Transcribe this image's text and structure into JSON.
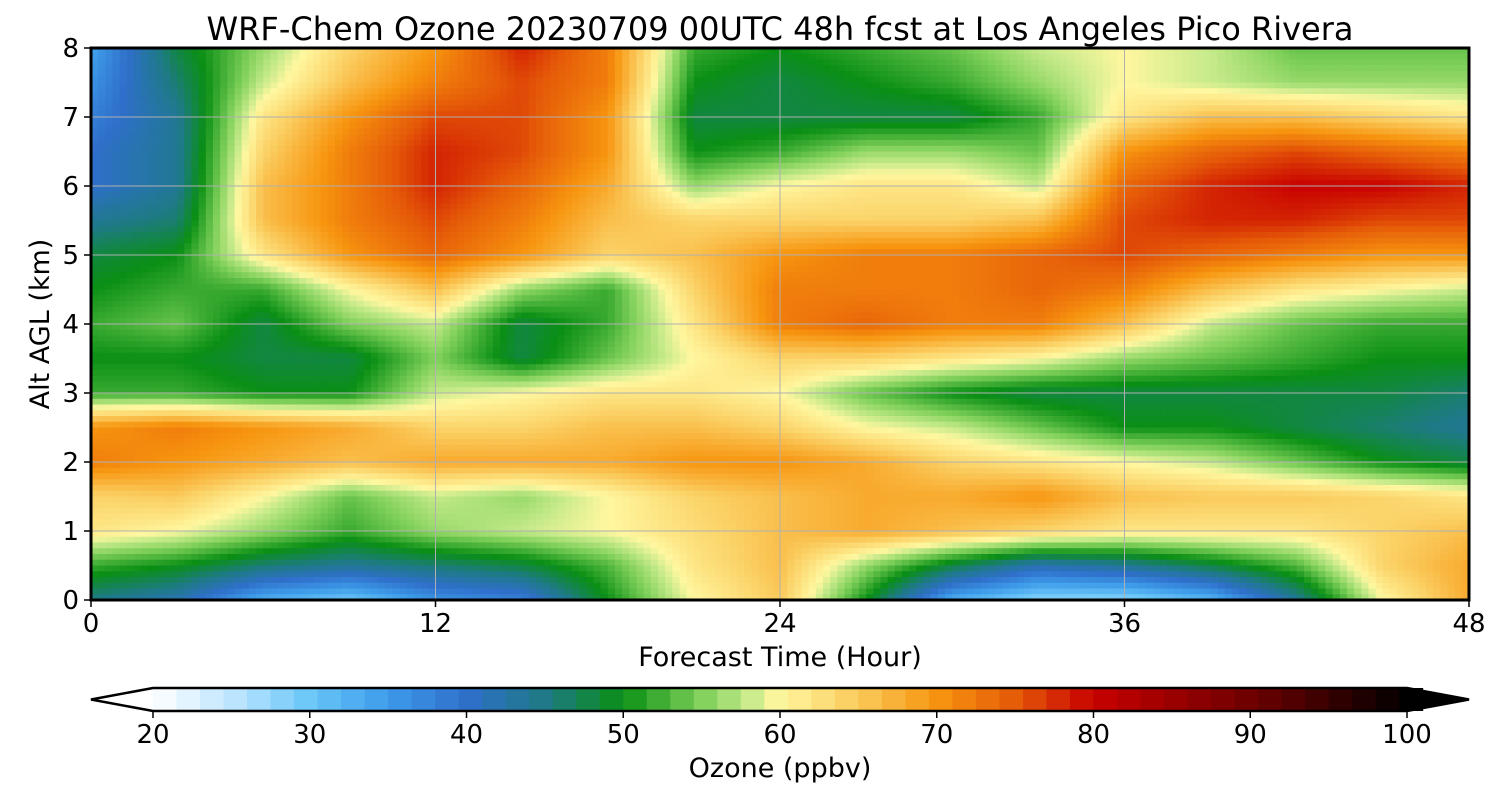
{
  "chart_data": {
    "type": "heatmap",
    "title": "WRF-Chem Ozone  20230709 00UTC 48h fcst at Los Angeles Pico Rivera",
    "xlabel": "Forecast Time (Hour)",
    "ylabel": "Alt AGL (km)",
    "xlim": [
      0,
      48
    ],
    "ylim": [
      0,
      8
    ],
    "x_ticks": [
      0,
      12,
      24,
      36,
      48
    ],
    "y_ticks": [
      0,
      1,
      2,
      3,
      4,
      5,
      6,
      7,
      8
    ],
    "grid": true,
    "x": [
      0,
      3,
      6,
      9,
      12,
      15,
      18,
      21,
      24,
      27,
      30,
      33,
      36,
      39,
      42,
      45,
      48
    ],
    "y": [
      0,
      0.5,
      1,
      1.5,
      2,
      2.5,
      3,
      3.5,
      4,
      4.5,
      5,
      5.5,
      6,
      6.5,
      7,
      7.5,
      8
    ],
    "values": [
      [
        45,
        42,
        33,
        30,
        36,
        38,
        50,
        60,
        65,
        50,
        33,
        28,
        28,
        32,
        44,
        60,
        68
      ],
      [
        52,
        50,
        46,
        44,
        46,
        48,
        53,
        62,
        66,
        56,
        48,
        42,
        44,
        48,
        53,
        64,
        68
      ],
      [
        62,
        60,
        56,
        52,
        56,
        58,
        60,
        63,
        66,
        68,
        66,
        64,
        62,
        62,
        62,
        64,
        66
      ],
      [
        64,
        65,
        60,
        54,
        58,
        56,
        60,
        64,
        66,
        68,
        68,
        70,
        66,
        65,
        65,
        64,
        62
      ],
      [
        72,
        70,
        68,
        66,
        68,
        68,
        68,
        70,
        70,
        68,
        64,
        62,
        60,
        58,
        54,
        50,
        48
      ],
      [
        70,
        72,
        70,
        68,
        64,
        64,
        66,
        66,
        64,
        60,
        58,
        54,
        50,
        50,
        48,
        46,
        44
      ],
      [
        52,
        52,
        50,
        50,
        58,
        60,
        62,
        62,
        60,
        54,
        50,
        48,
        48,
        48,
        48,
        48,
        46
      ],
      [
        50,
        50,
        48,
        48,
        55,
        48,
        54,
        60,
        64,
        64,
        62,
        60,
        56,
        54,
        52,
        50,
        50
      ],
      [
        52,
        54,
        48,
        55,
        58,
        48,
        52,
        62,
        72,
        74,
        72,
        72,
        66,
        58,
        54,
        52,
        52
      ],
      [
        50,
        52,
        52,
        60,
        66,
        56,
        52,
        64,
        72,
        72,
        72,
        74,
        72,
        66,
        62,
        60,
        58
      ],
      [
        48,
        50,
        62,
        70,
        74,
        70,
        64,
        66,
        70,
        72,
        72,
        74,
        76,
        74,
        72,
        70,
        70
      ],
      [
        44,
        46,
        66,
        72,
        76,
        72,
        66,
        64,
        64,
        64,
        64,
        66,
        76,
        78,
        78,
        76,
        76
      ],
      [
        40,
        44,
        66,
        72,
        78,
        74,
        68,
        56,
        60,
        62,
        62,
        58,
        74,
        78,
        80,
        80,
        78
      ],
      [
        40,
        44,
        64,
        72,
        78,
        76,
        70,
        50,
        52,
        56,
        56,
        54,
        70,
        74,
        76,
        74,
        72
      ],
      [
        38,
        44,
        62,
        70,
        76,
        76,
        70,
        48,
        48,
        48,
        48,
        52,
        62,
        66,
        66,
        64,
        62
      ],
      [
        36,
        46,
        58,
        66,
        72,
        76,
        72,
        50,
        48,
        50,
        52,
        56,
        60,
        58,
        56,
        56,
        56
      ],
      [
        34,
        48,
        56,
        64,
        70,
        78,
        72,
        52,
        50,
        52,
        54,
        58,
        60,
        58,
        54,
        54,
        54
      ]
    ],
    "colorbar": {
      "label": "Ozone  (ppbv)",
      "min": 20,
      "max": 100,
      "ticks": [
        20,
        30,
        40,
        50,
        60,
        70,
        80,
        90,
        100
      ],
      "extend": "both",
      "stops": [
        {
          "v": 20,
          "c": "#ffffff"
        },
        {
          "v": 25,
          "c": "#bfe6ff"
        },
        {
          "v": 30,
          "c": "#6ac6f8"
        },
        {
          "v": 35,
          "c": "#3d9be9"
        },
        {
          "v": 40,
          "c": "#2f6fcb"
        },
        {
          "v": 45,
          "c": "#1e7a86"
        },
        {
          "v": 50,
          "c": "#0a8f14"
        },
        {
          "v": 55,
          "c": "#7fd05a"
        },
        {
          "v": 58,
          "c": "#c6ea8a"
        },
        {
          "v": 60,
          "c": "#fff7a0"
        },
        {
          "v": 64,
          "c": "#fbd46a"
        },
        {
          "v": 70,
          "c": "#f7950f"
        },
        {
          "v": 75,
          "c": "#e55a08"
        },
        {
          "v": 80,
          "c": "#c80000"
        },
        {
          "v": 90,
          "c": "#6e0000"
        },
        {
          "v": 100,
          "c": "#000000"
        }
      ]
    }
  }
}
